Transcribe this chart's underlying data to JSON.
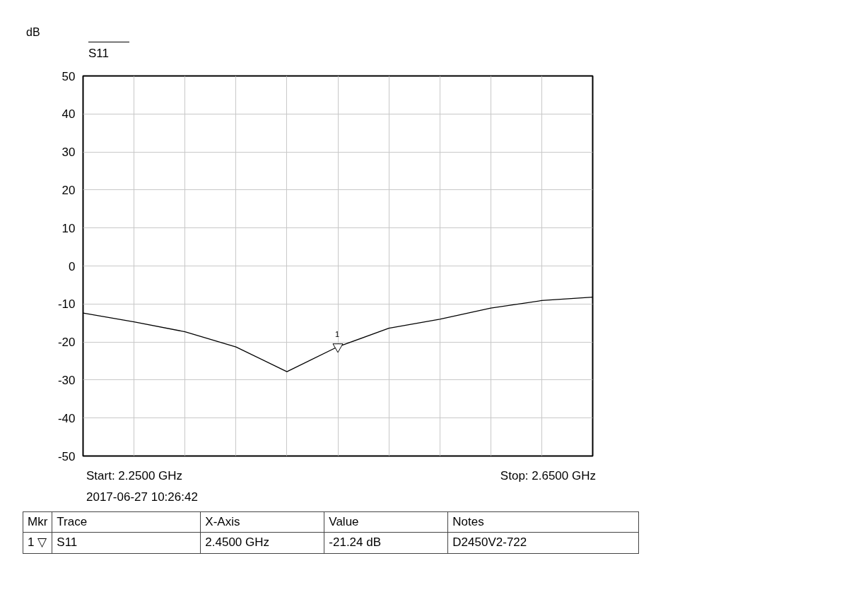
{
  "chart_data": {
    "type": "line",
    "title": "S11",
    "ylabel": "dB",
    "categories": [
      null,
      null,
      null,
      null,
      null,
      null,
      null,
      null,
      null,
      null,
      null
    ],
    "series": [
      {
        "color": "#000000",
        "values": [
          -12.4,
          -14.7,
          -17.3,
          -21.3,
          -27.8,
          -21.24,
          -16.4,
          -14.0,
          -11.1,
          -9.1,
          -8.2
        ]
      }
    ],
    "ylim": [
      -50,
      50
    ],
    "yticks": [
      -50,
      -40,
      -30,
      -20,
      -10,
      0,
      10,
      20,
      30,
      40,
      50
    ],
    "grid": true,
    "tick_labels": "y",
    "line_style": "solid",
    "annotations": [
      "Start: 2.2500 GHz",
      "Stop: 2.6500 GHz",
      "2017-06-27 10:26:42",
      {
        "text": "1",
        "y": -21.24
      },
      "Mkr",
      "Trace",
      "X-Axis",
      "Value",
      "Notes",
      "1 ▽",
      "S11",
      "2.4500 GHz",
      "-21.24 dB",
      "D2450V2-722"
    ]
  }
}
